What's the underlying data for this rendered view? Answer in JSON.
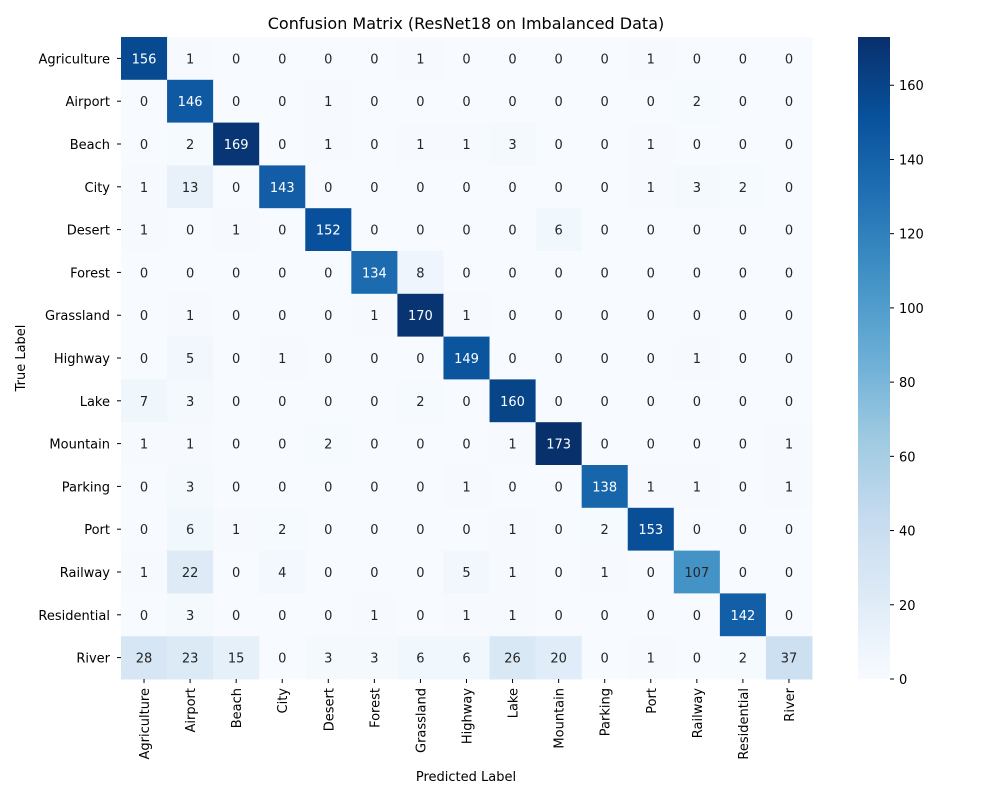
{
  "chart_data": {
    "type": "heatmap",
    "title": "Confusion Matrix (ResNet18 on Imbalanced Data)",
    "xlabel": "Predicted Label",
    "ylabel": "True Label",
    "categories": [
      "Agriculture",
      "Airport",
      "Beach",
      "City",
      "Desert",
      "Forest",
      "Grassland",
      "Highway",
      "Lake",
      "Mountain",
      "Parking",
      "Port",
      "Railway",
      "Residential",
      "River"
    ],
    "values": [
      [
        156,
        1,
        0,
        0,
        0,
        0,
        1,
        0,
        0,
        0,
        0,
        1,
        0,
        0,
        0
      ],
      [
        0,
        146,
        0,
        0,
        1,
        0,
        0,
        0,
        0,
        0,
        0,
        0,
        2,
        0,
        0
      ],
      [
        0,
        2,
        169,
        0,
        1,
        0,
        1,
        1,
        3,
        0,
        0,
        1,
        0,
        0,
        0
      ],
      [
        1,
        13,
        0,
        143,
        0,
        0,
        0,
        0,
        0,
        0,
        0,
        1,
        3,
        2,
        0
      ],
      [
        1,
        0,
        1,
        0,
        152,
        0,
        0,
        0,
        0,
        6,
        0,
        0,
        0,
        0,
        0
      ],
      [
        0,
        0,
        0,
        0,
        0,
        134,
        8,
        0,
        0,
        0,
        0,
        0,
        0,
        0,
        0
      ],
      [
        0,
        1,
        0,
        0,
        0,
        1,
        170,
        1,
        0,
        0,
        0,
        0,
        0,
        0,
        0
      ],
      [
        0,
        5,
        0,
        1,
        0,
        0,
        0,
        149,
        0,
        0,
        0,
        0,
        1,
        0,
        0
      ],
      [
        7,
        3,
        0,
        0,
        0,
        0,
        2,
        0,
        160,
        0,
        0,
        0,
        0,
        0,
        0
      ],
      [
        1,
        1,
        0,
        0,
        2,
        0,
        0,
        0,
        1,
        173,
        0,
        0,
        0,
        0,
        1
      ],
      [
        0,
        3,
        0,
        0,
        0,
        0,
        0,
        1,
        0,
        0,
        138,
        1,
        1,
        0,
        1
      ],
      [
        0,
        6,
        1,
        2,
        0,
        0,
        0,
        0,
        1,
        0,
        2,
        153,
        0,
        0,
        0
      ],
      [
        1,
        22,
        0,
        4,
        0,
        0,
        0,
        5,
        1,
        0,
        1,
        0,
        107,
        0,
        0
      ],
      [
        0,
        3,
        0,
        0,
        0,
        1,
        0,
        1,
        1,
        0,
        0,
        0,
        0,
        142,
        0
      ],
      [
        28,
        23,
        15,
        0,
        3,
        3,
        6,
        6,
        26,
        20,
        0,
        1,
        0,
        2,
        37
      ]
    ],
    "colorbar": {
      "colormap": "Blues",
      "range": [
        0,
        173
      ],
      "ticks": [
        0,
        20,
        40,
        60,
        80,
        100,
        120,
        140,
        160
      ]
    },
    "grid": false
  }
}
